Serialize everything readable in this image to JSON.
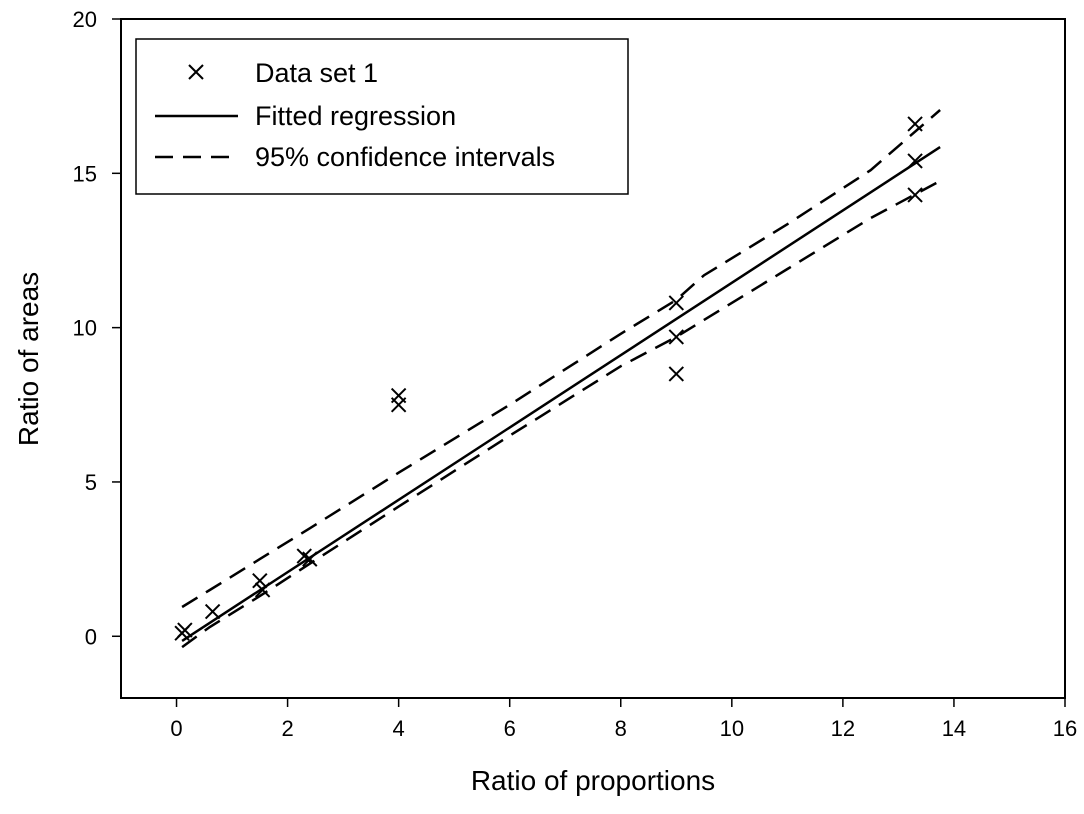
{
  "chart_data": {
    "type": "scatter",
    "title": "",
    "xlabel": "Ratio of proportions",
    "ylabel": "Ratio of areas",
    "xlim": [
      -1,
      16
    ],
    "ylim": [
      -2,
      20
    ],
    "xticks": [
      0,
      2,
      4,
      6,
      8,
      10,
      12,
      14,
      16
    ],
    "yticks": [
      0,
      5,
      10,
      15,
      20
    ],
    "grid": false,
    "legend_position": "top-left",
    "legend": [
      {
        "label": "Data set 1",
        "marker": "x"
      },
      {
        "label": "Fitted regression",
        "line": "solid"
      },
      {
        "label": "95% confidence intervals",
        "line": "dashed"
      }
    ],
    "series": [
      {
        "name": "Data set 1",
        "kind": "scatter",
        "marker": "x",
        "points": [
          [
            0.1,
            0.1
          ],
          [
            0.15,
            0.2
          ],
          [
            0.65,
            0.8
          ],
          [
            1.5,
            1.8
          ],
          [
            1.55,
            1.5
          ],
          [
            2.3,
            2.6
          ],
          [
            2.4,
            2.5
          ],
          [
            4.0,
            7.8
          ],
          [
            4.0,
            7.5
          ],
          [
            9.0,
            10.8
          ],
          [
            9.0,
            9.7
          ],
          [
            9.0,
            8.5
          ],
          [
            13.3,
            16.6
          ],
          [
            13.3,
            15.4
          ],
          [
            13.3,
            14.3
          ]
        ]
      },
      {
        "name": "Fitted regression",
        "kind": "line",
        "style": "solid",
        "points": [
          [
            0.1,
            -0.15
          ],
          [
            13.75,
            15.85
          ]
        ]
      },
      {
        "name": "95% confidence intervals",
        "kind": "line",
        "style": "dashed",
        "points": [
          [
            0.1,
            0.95
          ],
          [
            0.6,
            1.5
          ],
          [
            1.5,
            2.5
          ],
          [
            2.4,
            3.5
          ],
          [
            4.0,
            5.3
          ],
          [
            6.0,
            7.5
          ],
          [
            8.0,
            9.8
          ],
          [
            9.0,
            10.9
          ],
          [
            9.5,
            11.7
          ],
          [
            11.0,
            13.35
          ],
          [
            12.5,
            15.1
          ],
          [
            13.75,
            17.05
          ]
        ]
      },
      {
        "name": "95% confidence intervals",
        "kind": "line",
        "style": "dashed",
        "points": [
          [
            0.1,
            -0.35
          ],
          [
            0.6,
            0.3
          ],
          [
            1.5,
            1.3
          ],
          [
            2.4,
            2.35
          ],
          [
            4.0,
            4.2
          ],
          [
            6.0,
            6.5
          ],
          [
            8.0,
            8.75
          ],
          [
            9.0,
            9.7
          ],
          [
            11.0,
            11.9
          ],
          [
            12.5,
            13.55
          ],
          [
            13.75,
            14.75
          ]
        ]
      }
    ]
  }
}
